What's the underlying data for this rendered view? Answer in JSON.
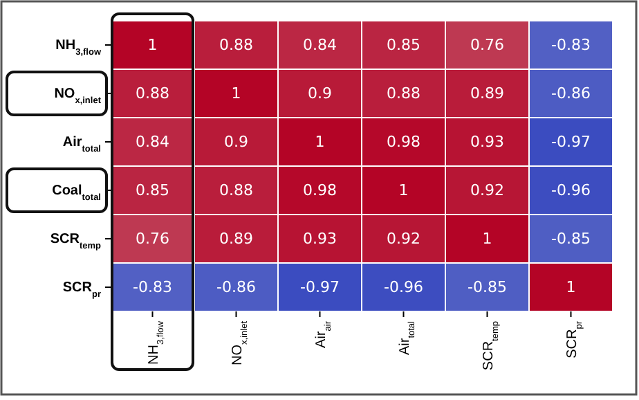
{
  "chart_data": {
    "type": "heatmap",
    "categories": [
      "NH$_{3,flow}$",
      "NO$_{x,inlet}$",
      "Air$_{air}$",
      "Air$_{total}$",
      "SCR$_{temp}$",
      "SCR$_{pr}$"
    ],
    "y_categories": [
      "NH$_{3,flow}$",
      "NO$_{x,inlet}$",
      "Air$_{total}$",
      "Coal$_{total}$",
      "SCR$_{temp}$",
      "SCR$_{pr}$"
    ],
    "cells": [
      [
        1,
        0.88,
        0.84,
        0.85,
        0.76,
        -0.83
      ],
      [
        0.88,
        1,
        0.9,
        0.88,
        0.89,
        -0.86
      ],
      [
        0.84,
        0.9,
        1,
        0.98,
        0.93,
        -0.97
      ],
      [
        0.85,
        0.88,
        0.98,
        1,
        0.92,
        -0.96
      ],
      [
        0.76,
        0.89,
        0.93,
        0.92,
        1,
        -0.85
      ],
      [
        -0.83,
        -0.86,
        -0.97,
        -0.96,
        -0.85,
        1
      ]
    ],
    "data_labels": true
  }
}
